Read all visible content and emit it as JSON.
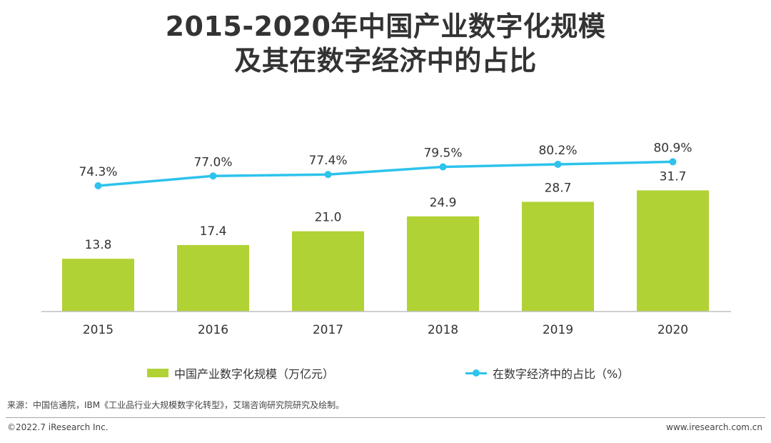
{
  "title": {
    "line1": "2015-2020年中国产业数字化规模",
    "line2": "及其在数字经济中的占比"
  },
  "colors": {
    "bar": "#b1d235",
    "line": "#2dc3ec",
    "axis": "#bfbfbf",
    "text": "#333333"
  },
  "chart_data": {
    "type": "bar",
    "categories": [
      "2015",
      "2016",
      "2017",
      "2018",
      "2019",
      "2020"
    ],
    "series": [
      {
        "name": "中国产业数字化规模（万亿元）",
        "type": "bar",
        "values": [
          13.8,
          17.4,
          21.0,
          24.9,
          28.7,
          31.7
        ],
        "labels": [
          "13.8",
          "17.4",
          "21.0",
          "24.9",
          "28.7",
          "31.7"
        ]
      },
      {
        "name": "在数字经济中的占比（%）",
        "type": "line",
        "values": [
          74.3,
          77.0,
          77.4,
          79.5,
          80.2,
          80.9
        ],
        "labels": [
          "74.3%",
          "77.0%",
          "77.4%",
          "79.5%",
          "80.2%",
          "80.9%"
        ]
      }
    ],
    "legend_position": "bottom",
    "grid": false
  },
  "legend": {
    "bar_label": "中国产业数字化规模（万亿元）",
    "line_label": "在数字经济中的占比（%）"
  },
  "source": "来源：中国信通院，IBM《工业品行业大规模数字化转型》，艾瑞咨询研究院研究及绘制。",
  "footer": {
    "copyright": "©2022.7 iResearch Inc.",
    "website": "www.iresearch.com.cn"
  }
}
